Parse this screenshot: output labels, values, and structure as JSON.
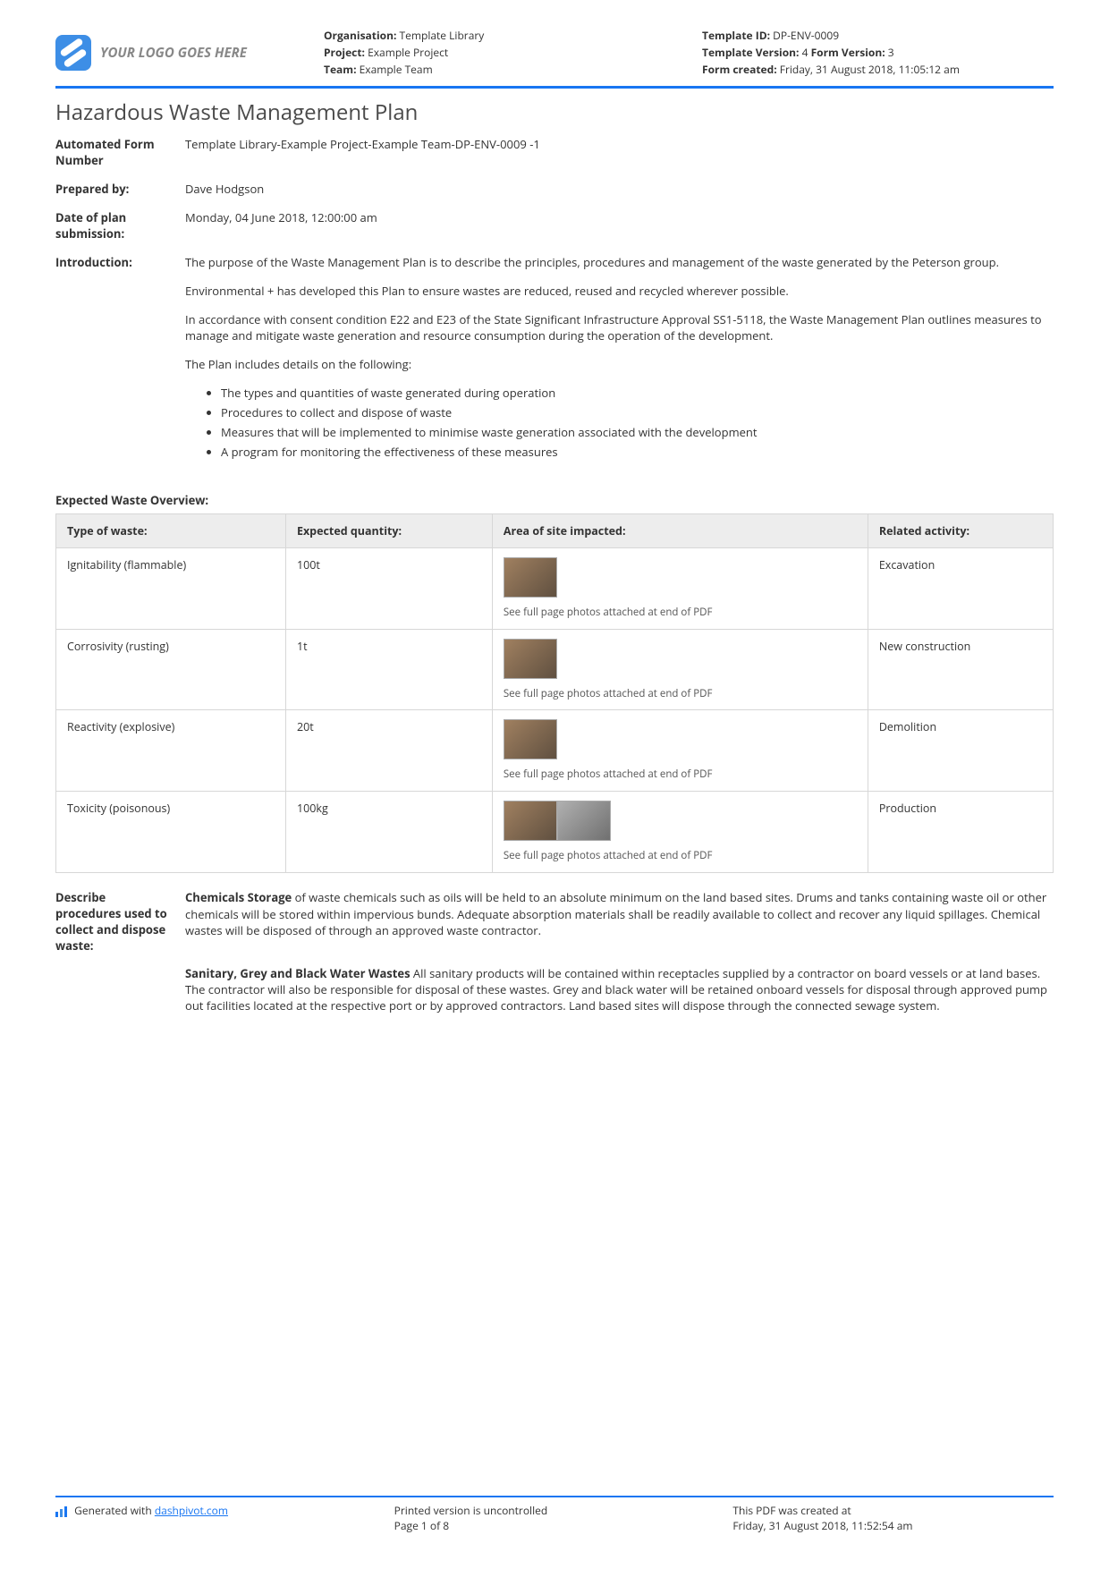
{
  "colors": {
    "accent": "#1976f2",
    "border": "#d7d7d7",
    "th_bg": "#ededed"
  },
  "header": {
    "logo_text": "YOUR LOGO GOES HERE",
    "col1": {
      "org_label": "Organisation:",
      "org_value": " Template Library",
      "project_label": "Project:",
      "project_value": " Example Project",
      "team_label": "Team:",
      "team_value": " Example Team"
    },
    "col2": {
      "tid_label": "Template ID:",
      "tid_value": " DP-ENV-0009",
      "tv_label": "Template Version:",
      "tv_value": " 4 ",
      "fv_label": "Form Version:",
      "fv_value": " 3",
      "created_label": "Form created:",
      "created_value": " Friday, 31 August 2018, 11:05:12 am"
    }
  },
  "title": "Hazardous Waste Management Plan",
  "fields": {
    "form_number": {
      "label": "Automated Form Number",
      "value": "Template Library-Example Project-Example Team-DP-ENV-0009   -1"
    },
    "prepared_by": {
      "label": "Prepared by:",
      "value": "Dave Hodgson"
    },
    "date": {
      "label": "Date of plan submission:",
      "value": "Monday, 04 June 2018, 12:00:00 am"
    },
    "intro": {
      "label": "Introduction:"
    }
  },
  "intro": {
    "p1": "The purpose of the Waste Management Plan is to describe the principles, procedures and management of the waste generated by the Peterson group.",
    "p2": "Environmental + has developed this Plan to ensure wastes are reduced, reused and recycled wherever possible.",
    "p3": "In accordance with consent condition E22 and E23 of the State Significant Infrastructure Approval SS1-5118, the Waste Management Plan outlines measures to manage and mitigate waste generation and resource consumption during the operation of the development.",
    "p4": "The Plan includes details on the following:",
    "bullets": [
      "The types and quantities of waste generated during operation",
      "Procedures to collect and dispose of waste",
      "Measures that will be implemented to minimise waste generation associated with the development",
      "A program for monitoring the effectiveness of these measures"
    ]
  },
  "table": {
    "title": "Expected Waste Overview:",
    "headers": [
      "Type of waste:",
      "Expected quantity:",
      "Area of site impacted:",
      "Related activity:"
    ],
    "caption": "See full page photos attached at end of PDF",
    "rows": [
      {
        "type": "Ignitability (flammable)",
        "qty": "100t",
        "activity": "Excavation"
      },
      {
        "type": "Corrosivity (rusting)",
        "qty": "1t",
        "activity": "New construction"
      },
      {
        "type": "Reactivity (explosive)",
        "qty": "20t",
        "activity": "Demolition"
      },
      {
        "type": "Toxicity (poisonous)",
        "qty": "100kg",
        "activity": "Production"
      }
    ]
  },
  "procedures": {
    "label": "Describe procedures used to collect and dispose waste:",
    "para1_title": "Chemicals Storage",
    "para1_body": " of waste chemicals such as oils will be held to an absolute minimum on the land based sites. Drums and tanks containing waste oil or other chemicals will be stored within impervious bunds. Adequate absorption materials shall be readily available to collect and recover any liquid spillages. Chemical wastes will be disposed of through an approved waste contractor.",
    "para2_title": "Sanitary, Grey and Black Water Wastes",
    "para2_body": " All sanitary products will be contained within receptacles supplied by a contractor on board vessels or at land bases. The contractor will also be responsible for disposal of these wastes. Grey and black water will be retained onboard vessels for disposal through approved pump out facilities located at the respective port or by approved contractors. Land based sites will dispose through the connected sewage system."
  },
  "footer": {
    "gen1": "Generated with ",
    "gen_link": "dashpivot.com",
    "printed": "Printed version is uncontrolled",
    "page": "Page 1 of 8",
    "created1": "This PDF was created at",
    "created2": "Friday, 31 August 2018, 11:52:54 am"
  }
}
